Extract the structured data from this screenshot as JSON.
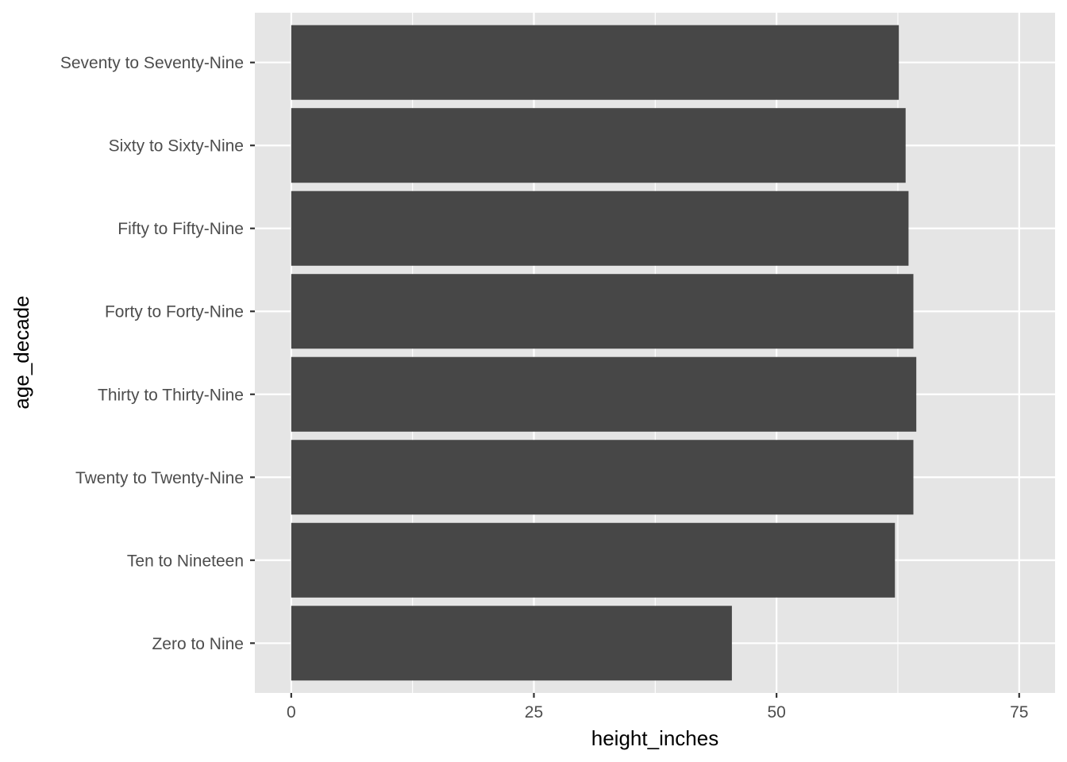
{
  "chart_data": {
    "type": "bar",
    "orientation": "horizontal",
    "categories": [
      "Zero to Nine",
      "Ten to Nineteen",
      "Twenty to Twenty-Nine",
      "Thirty to Thirty-Nine",
      "Forty to Forty-Nine",
      "Fifty to Fifty-Nine",
      "Sixty to Sixty-Nine",
      "Seventy to Seventy-Nine"
    ],
    "values": [
      45.4,
      62.2,
      64.1,
      64.4,
      64.1,
      63.6,
      63.3,
      62.6
    ],
    "xlabel": "height_inches",
    "ylabel": "age_decade",
    "xlim": [
      -3.75,
      78.7
    ],
    "xticks": [
      0,
      25,
      50,
      75
    ],
    "xtick_labels": [
      "0",
      "25",
      "50",
      "75"
    ],
    "grid": true,
    "legend": "none",
    "colors": {
      "bar": "#474747",
      "panel": "#e5e5e5",
      "grid": "#ffffff",
      "tick_text": "#4d4d4d",
      "tick_mark": "#333333",
      "title_text": "#000000"
    }
  }
}
